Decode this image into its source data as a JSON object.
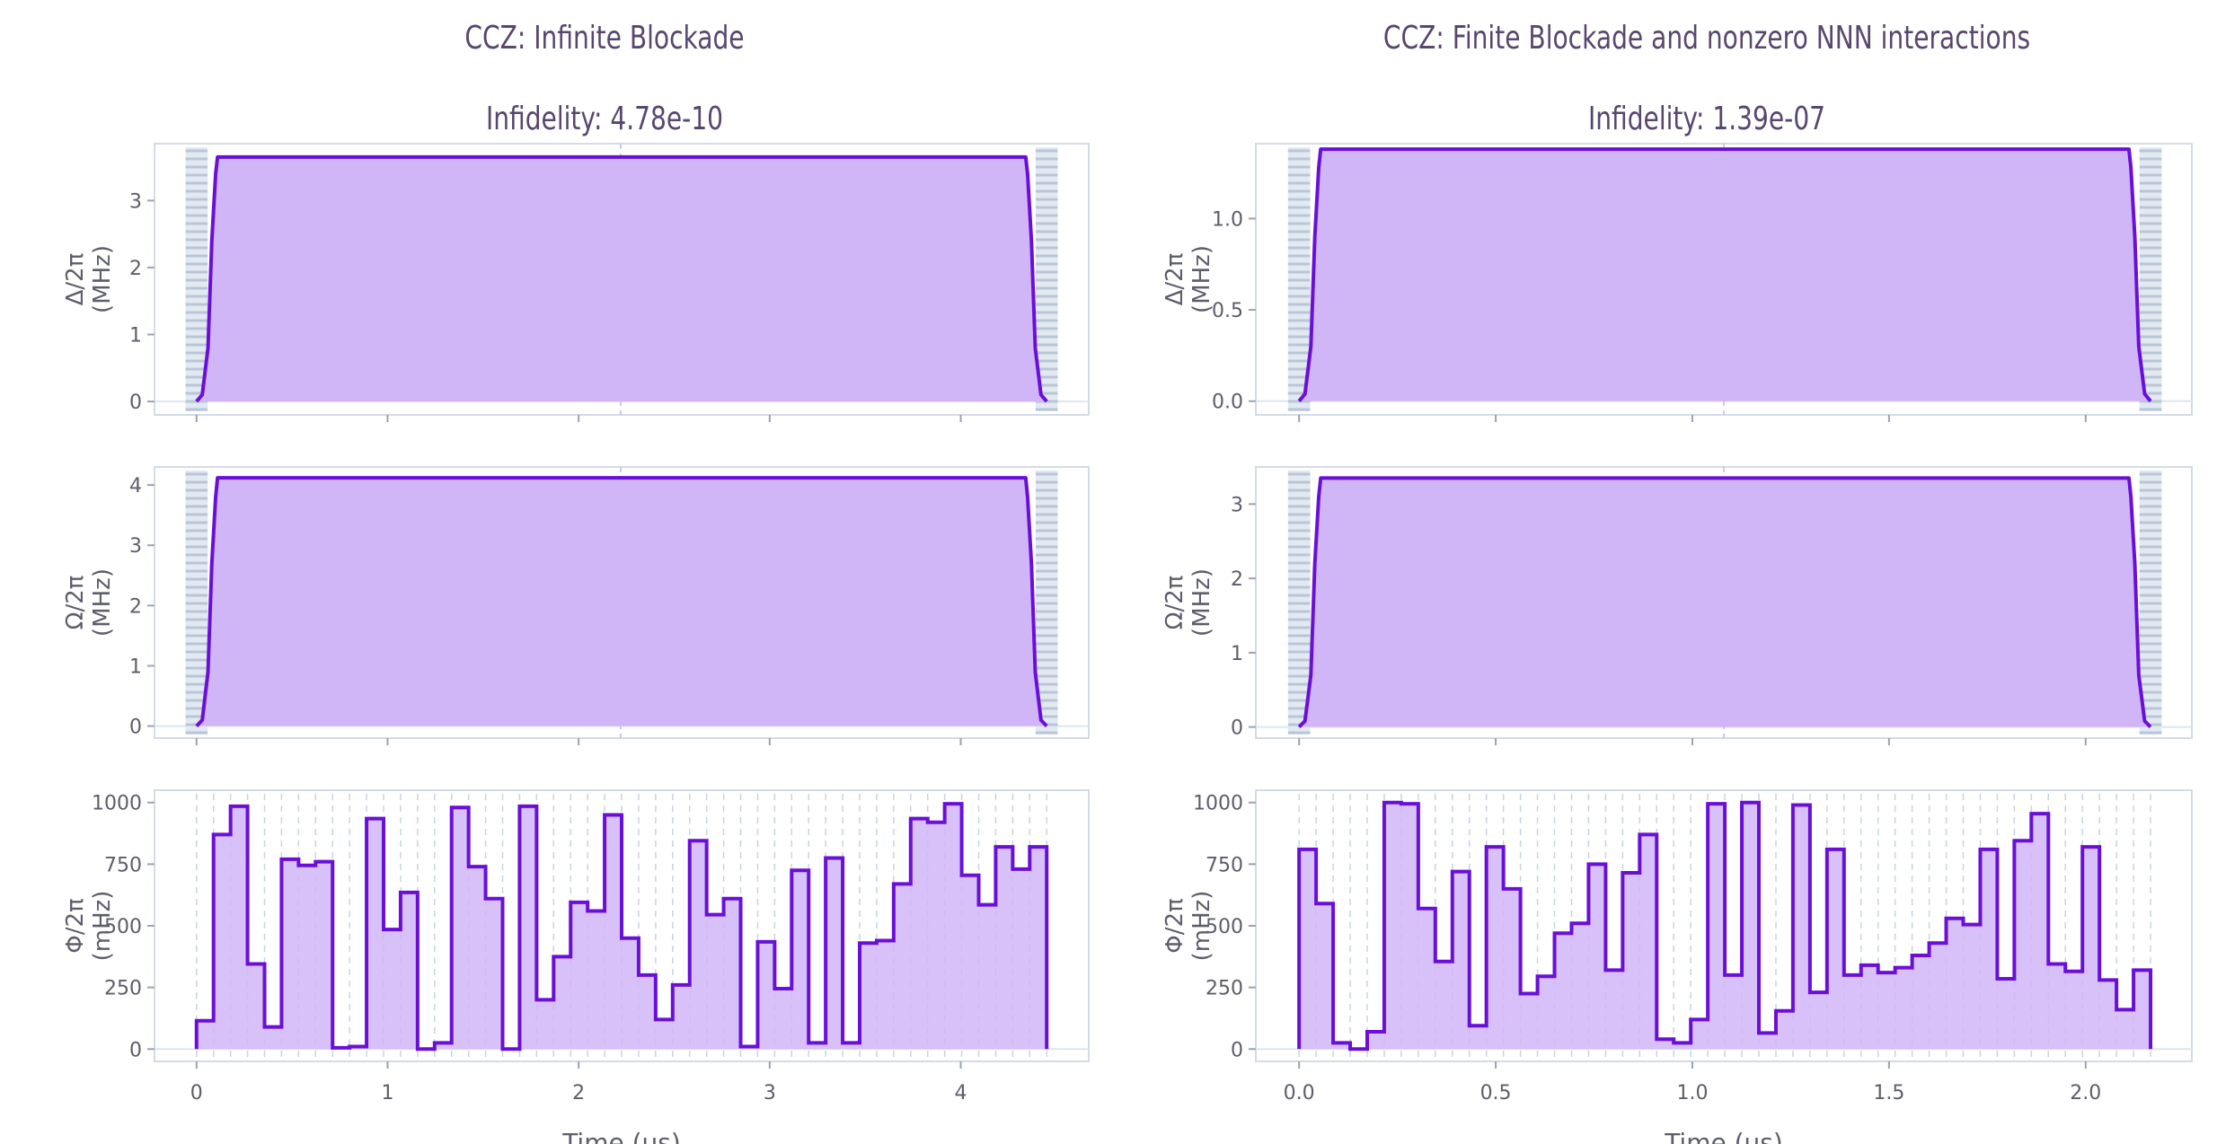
{
  "chart_data": [
    {
      "type": "area",
      "panel": "top-left",
      "title": "CCZ: Infinite Blockade",
      "subtitle": "Infidelity: 4.78e-10",
      "ylabel": "Δ/2π\n(MHz)",
      "xlim": [
        -0.22,
        4.67
      ],
      "ylim": [
        -0.2,
        3.85
      ],
      "xticks": [
        0,
        1,
        2,
        3,
        4
      ],
      "yticks": [
        0,
        1,
        2,
        3
      ],
      "ytick_labels": [
        "0",
        "1",
        "2",
        "3"
      ],
      "x": [
        0,
        0.03,
        0.06,
        0.08,
        0.1,
        0.11,
        4.34,
        4.35,
        4.37,
        4.39,
        4.42,
        4.45
      ],
      "y": [
        0,
        0.1,
        0.8,
        2.4,
        3.4,
        3.65,
        3.65,
        3.4,
        2.4,
        0.8,
        0.1,
        0
      ],
      "midline": 2.22
    },
    {
      "type": "area",
      "panel": "middle-left",
      "ylabel": "Ω/2π\n(MHz)",
      "xlim": [
        -0.22,
        4.67
      ],
      "ylim": [
        -0.2,
        4.3
      ],
      "xticks": [
        0,
        1,
        2,
        3,
        4
      ],
      "yticks": [
        0,
        1,
        2,
        3,
        4
      ],
      "ytick_labels": [
        "0",
        "1",
        "2",
        "3",
        "4"
      ],
      "x": [
        0,
        0.03,
        0.06,
        0.08,
        0.1,
        0.11,
        4.34,
        4.35,
        4.37,
        4.39,
        4.42,
        4.45
      ],
      "y": [
        0,
        0.1,
        0.9,
        2.7,
        3.8,
        4.12,
        4.12,
        3.8,
        2.7,
        0.9,
        0.1,
        0
      ],
      "midline": 2.22
    },
    {
      "type": "step",
      "panel": "bottom-left",
      "ylabel": "Φ/2π\n(mHz)",
      "xlabel": "Time (us)",
      "xlim": [
        -0.22,
        4.67
      ],
      "ylim": [
        -50,
        1050
      ],
      "xticks": [
        0,
        1,
        2,
        3,
        4
      ],
      "xtick_labels": [
        "0",
        "1",
        "2",
        "3",
        "4"
      ],
      "yticks": [
        0,
        250,
        500,
        750,
        1000
      ],
      "ytick_labels": [
        "0",
        "250",
        "500",
        "750",
        "1000"
      ],
      "t_end": 4.45,
      "values": [
        115,
        870,
        985,
        345,
        90,
        770,
        745,
        760,
        5,
        10,
        935,
        485,
        635,
        0,
        25,
        980,
        740,
        610,
        0,
        985,
        200,
        375,
        595,
        560,
        950,
        450,
        300,
        120,
        260,
        845,
        545,
        610,
        10,
        435,
        245,
        725,
        25,
        775,
        25,
        430,
        440,
        670,
        935,
        920,
        995,
        705,
        585,
        820,
        730,
        820
      ]
    },
    {
      "type": "area",
      "panel": "top-right",
      "title": "CCZ: Finite Blockade and nonzero NNN interactions",
      "subtitle": "Infidelity: 1.39e-07",
      "ylabel": "Δ/2π\n(MHz)",
      "xlim": [
        -0.11,
        2.27
      ],
      "ylim": [
        -0.075,
        1.41
      ],
      "xticks": [
        0,
        0.5,
        1,
        1.5,
        2
      ],
      "yticks": [
        0,
        0.5,
        1.0
      ],
      "ytick_labels": [
        "0.0",
        "0.5",
        "1.0"
      ],
      "x": [
        0,
        0.015,
        0.03,
        0.04,
        0.05,
        0.055,
        2.11,
        2.115,
        2.125,
        2.135,
        2.15,
        2.165
      ],
      "y": [
        0,
        0.04,
        0.3,
        0.9,
        1.28,
        1.38,
        1.38,
        1.28,
        0.9,
        0.3,
        0.04,
        0
      ],
      "midline": 1.08
    },
    {
      "type": "area",
      "panel": "middle-right",
      "ylabel": "Ω/2π\n(MHz)",
      "xlim": [
        -0.11,
        2.27
      ],
      "ylim": [
        -0.15,
        3.5
      ],
      "xticks": [
        0,
        0.5,
        1,
        1.5,
        2
      ],
      "yticks": [
        0,
        1,
        2,
        3
      ],
      "ytick_labels": [
        "0",
        "1",
        "2",
        "3"
      ],
      "x": [
        0,
        0.015,
        0.03,
        0.04,
        0.05,
        0.055,
        2.11,
        2.115,
        2.125,
        2.135,
        2.15,
        2.165
      ],
      "y": [
        0,
        0.08,
        0.7,
        2.2,
        3.1,
        3.35,
        3.35,
        3.1,
        2.2,
        0.7,
        0.08,
        0
      ],
      "midline": 1.08
    },
    {
      "type": "step",
      "panel": "bottom-right",
      "ylabel": "Φ/2π\n(mHz)",
      "xlabel": "Time (us)",
      "xlim": [
        -0.11,
        2.27
      ],
      "ylim": [
        -50,
        1050
      ],
      "xticks": [
        0,
        0.5,
        1,
        1.5,
        2
      ],
      "xtick_labels": [
        "0.0",
        "0.5",
        "1.0",
        "1.5",
        "2.0"
      ],
      "yticks": [
        0,
        250,
        500,
        750,
        1000
      ],
      "ytick_labels": [
        "0",
        "250",
        "500",
        "750",
        "1000"
      ],
      "t_end": 2.165,
      "values": [
        810,
        590,
        25,
        0,
        70,
        1000,
        995,
        570,
        355,
        720,
        95,
        820,
        650,
        225,
        295,
        470,
        510,
        750,
        320,
        715,
        870,
        40,
        25,
        120,
        995,
        300,
        1000,
        65,
        155,
        990,
        230,
        810,
        300,
        340,
        310,
        330,
        380,
        430,
        530,
        505,
        810,
        285,
        845,
        955,
        345,
        315,
        820,
        280,
        160,
        320
      ]
    }
  ]
}
